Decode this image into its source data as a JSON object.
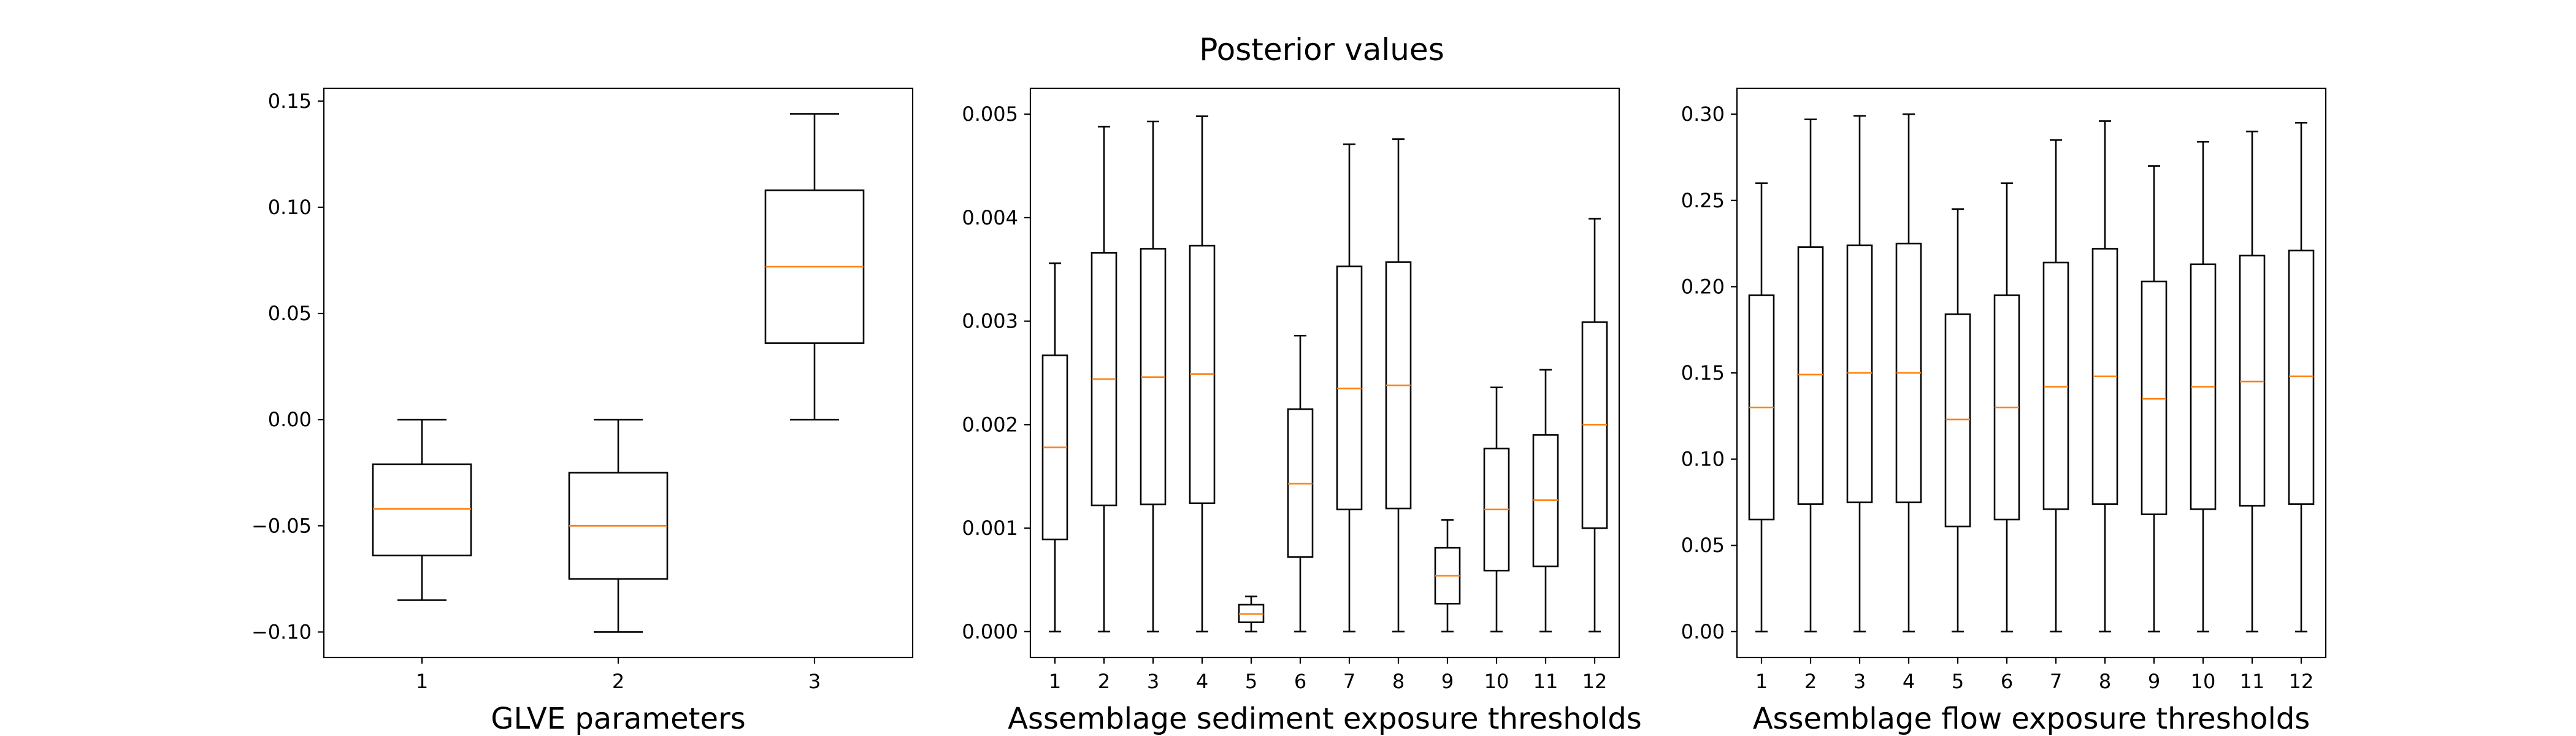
{
  "figure": {
    "title": "Posterior values",
    "box_edge_color": "#000000",
    "median_color": "#ff7f0e"
  },
  "chart_data": [
    {
      "type": "box",
      "title": "",
      "xlabel": "GLVE parameters",
      "ylabel": "",
      "categories": [
        "1",
        "2",
        "3"
      ],
      "ylim": [
        -0.112,
        0.156
      ],
      "yticks": [
        -0.1,
        -0.05,
        0.0,
        0.05,
        0.1,
        0.15
      ],
      "ytick_labels": [
        "−0.10",
        "−0.05",
        "0.00",
        "0.05",
        "0.10",
        "0.15"
      ],
      "boxes": [
        {
          "whisker_low": -0.085,
          "q1": -0.064,
          "median": -0.042,
          "q3": -0.021,
          "whisker_high": 0.0
        },
        {
          "whisker_low": -0.1,
          "q1": -0.075,
          "median": -0.05,
          "q3": -0.025,
          "whisker_high": 0.0
        },
        {
          "whisker_low": 0.0,
          "q1": 0.036,
          "median": 0.072,
          "q3": 0.108,
          "whisker_high": 0.144
        }
      ]
    },
    {
      "type": "box",
      "title": "",
      "xlabel": "Assemblage sediment exposure thresholds",
      "ylabel": "",
      "categories": [
        "1",
        "2",
        "3",
        "4",
        "5",
        "6",
        "7",
        "8",
        "9",
        "10",
        "11",
        "12"
      ],
      "ylim": [
        -0.00025,
        0.00525
      ],
      "yticks": [
        0.0,
        0.001,
        0.002,
        0.003,
        0.004,
        0.005
      ],
      "ytick_labels": [
        "0.000",
        "0.001",
        "0.002",
        "0.003",
        "0.004",
        "0.005"
      ],
      "boxes": [
        {
          "whisker_low": 0.0,
          "q1": 0.00089,
          "median": 0.00178,
          "q3": 0.00267,
          "whisker_high": 0.00356
        },
        {
          "whisker_low": 0.0,
          "q1": 0.00122,
          "median": 0.00244,
          "q3": 0.00366,
          "whisker_high": 0.00488
        },
        {
          "whisker_low": 0.0,
          "q1": 0.00123,
          "median": 0.00246,
          "q3": 0.0037,
          "whisker_high": 0.00493
        },
        {
          "whisker_low": 0.0,
          "q1": 0.00124,
          "median": 0.00249,
          "q3": 0.00373,
          "whisker_high": 0.00498
        },
        {
          "whisker_low": 0.0,
          "q1": 9e-05,
          "median": 0.00017,
          "q3": 0.00026,
          "whisker_high": 0.00034
        },
        {
          "whisker_low": 0.0,
          "q1": 0.00072,
          "median": 0.00143,
          "q3": 0.00215,
          "whisker_high": 0.00286
        },
        {
          "whisker_low": 0.0,
          "q1": 0.00118,
          "median": 0.00235,
          "q3": 0.00353,
          "whisker_high": 0.00471
        },
        {
          "whisker_low": 0.0,
          "q1": 0.00119,
          "median": 0.00238,
          "q3": 0.00357,
          "whisker_high": 0.00476
        },
        {
          "whisker_low": 0.0,
          "q1": 0.00027,
          "median": 0.00054,
          "q3": 0.00081,
          "whisker_high": 0.00108
        },
        {
          "whisker_low": 0.0,
          "q1": 0.00059,
          "median": 0.00118,
          "q3": 0.00177,
          "whisker_high": 0.00236
        },
        {
          "whisker_low": 0.0,
          "q1": 0.00063,
          "median": 0.00127,
          "q3": 0.0019,
          "whisker_high": 0.00253
        },
        {
          "whisker_low": 0.0,
          "q1": 0.001,
          "median": 0.002,
          "q3": 0.00299,
          "whisker_high": 0.00399
        }
      ]
    },
    {
      "type": "box",
      "title": "",
      "xlabel": "Assemblage flow exposure thresholds",
      "ylabel": "",
      "categories": [
        "1",
        "2",
        "3",
        "4",
        "5",
        "6",
        "7",
        "8",
        "9",
        "10",
        "11",
        "12"
      ],
      "ylim": [
        -0.015,
        0.315
      ],
      "yticks": [
        0.0,
        0.05,
        0.1,
        0.15,
        0.2,
        0.25,
        0.3
      ],
      "ytick_labels": [
        "0.00",
        "0.05",
        "0.10",
        "0.15",
        "0.20",
        "0.25",
        "0.30"
      ],
      "boxes": [
        {
          "whisker_low": 0.0,
          "q1": 0.065,
          "median": 0.13,
          "q3": 0.195,
          "whisker_high": 0.26
        },
        {
          "whisker_low": 0.0,
          "q1": 0.074,
          "median": 0.149,
          "q3": 0.223,
          "whisker_high": 0.297
        },
        {
          "whisker_low": 0.0,
          "q1": 0.075,
          "median": 0.15,
          "q3": 0.224,
          "whisker_high": 0.299
        },
        {
          "whisker_low": 0.0,
          "q1": 0.075,
          "median": 0.15,
          "q3": 0.225,
          "whisker_high": 0.3
        },
        {
          "whisker_low": 0.0,
          "q1": 0.061,
          "median": 0.123,
          "q3": 0.184,
          "whisker_high": 0.245
        },
        {
          "whisker_low": 0.0,
          "q1": 0.065,
          "median": 0.13,
          "q3": 0.195,
          "whisker_high": 0.26
        },
        {
          "whisker_low": 0.0,
          "q1": 0.071,
          "median": 0.142,
          "q3": 0.214,
          "whisker_high": 0.285
        },
        {
          "whisker_low": 0.0,
          "q1": 0.074,
          "median": 0.148,
          "q3": 0.222,
          "whisker_high": 0.296
        },
        {
          "whisker_low": 0.0,
          "q1": 0.068,
          "median": 0.135,
          "q3": 0.203,
          "whisker_high": 0.27
        },
        {
          "whisker_low": 0.0,
          "q1": 0.071,
          "median": 0.142,
          "q3": 0.213,
          "whisker_high": 0.284
        },
        {
          "whisker_low": 0.0,
          "q1": 0.073,
          "median": 0.145,
          "q3": 0.218,
          "whisker_high": 0.29
        },
        {
          "whisker_low": 0.0,
          "q1": 0.074,
          "median": 0.148,
          "q3": 0.221,
          "whisker_high": 0.295
        }
      ]
    }
  ]
}
